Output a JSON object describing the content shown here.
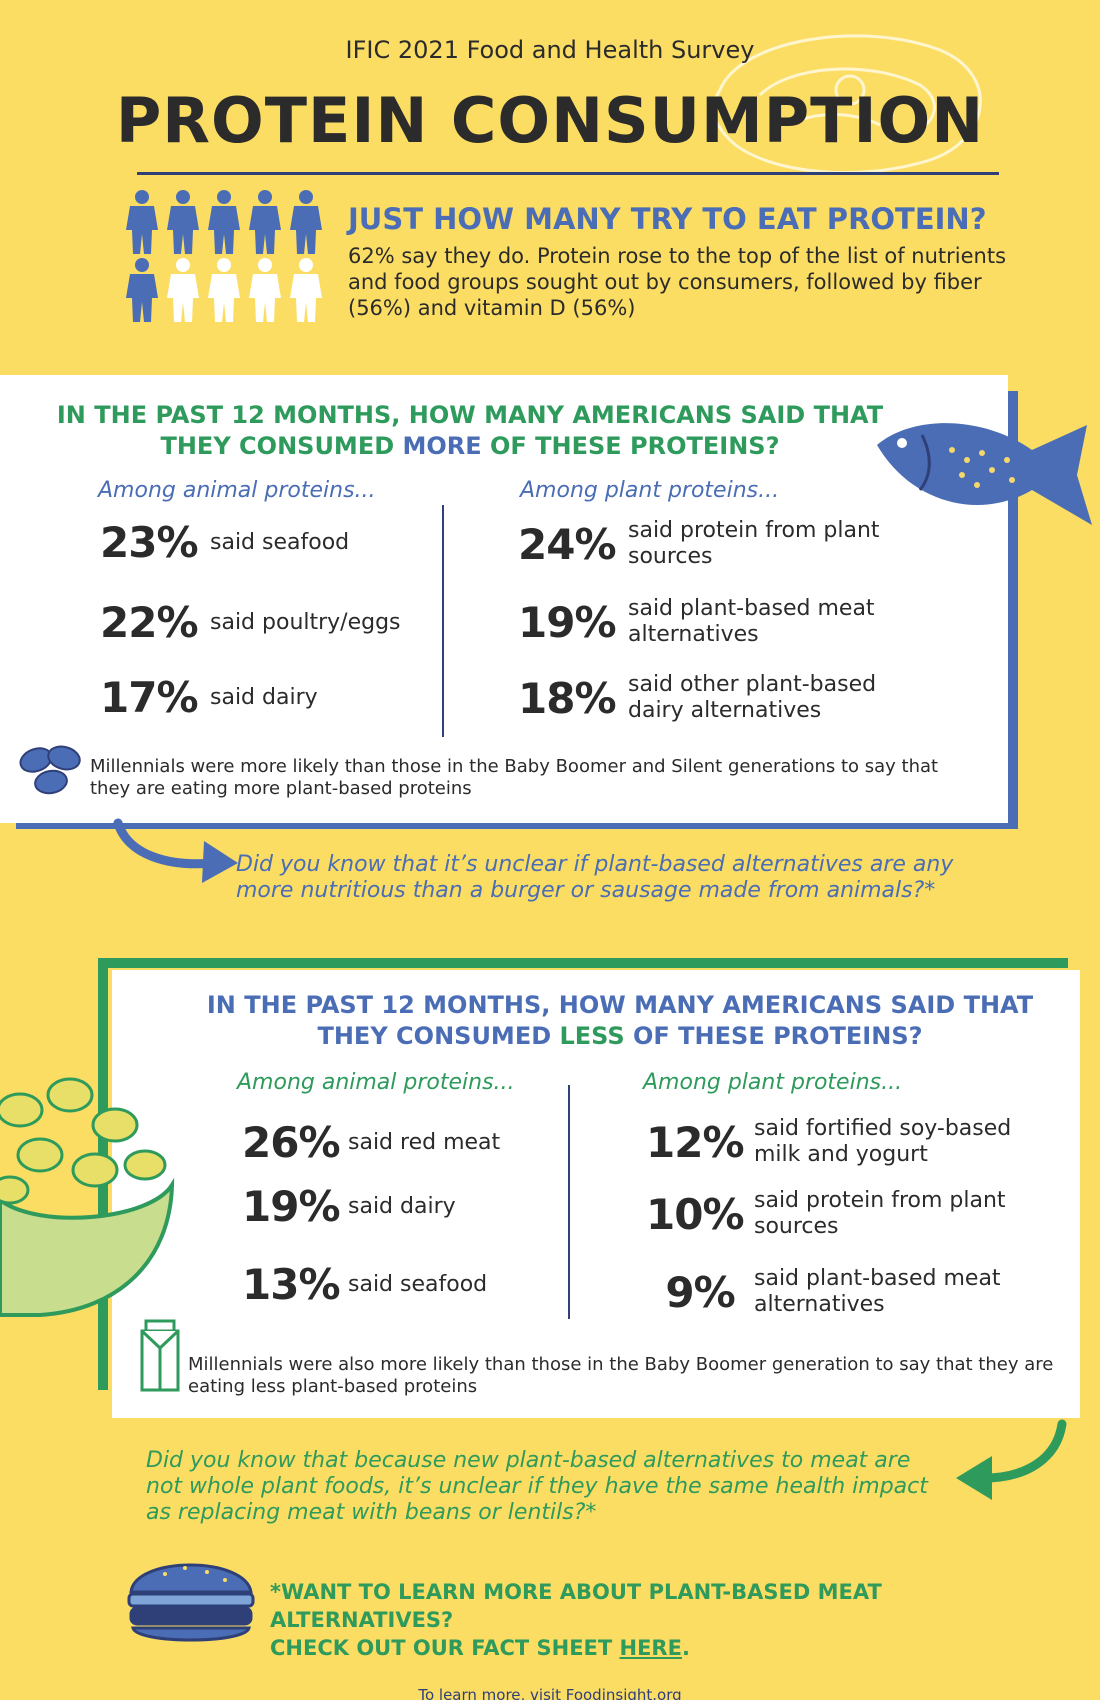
{
  "header": {
    "survey": "IFIC 2021 Food and Health Survey",
    "title": "PROTEIN CONSUMPTION"
  },
  "intro": {
    "question": "JUST HOW MANY TRY TO EAT PROTEIN?",
    "body": "62% say they do. Protein rose to the top of the list of nutrients and food groups sought out by consumers, followed by fiber (56%) and vitamin D (56%)",
    "people_total": 10,
    "people_filled": 6
  },
  "more": {
    "heading_pre": "IN THE PAST 12 MONTHS, HOW MANY AMERICANS SAID THAT THEY CONSUMED ",
    "heading_hi": "MORE",
    "heading_post": " OF THESE PROTEINS?",
    "animal_label": "Among animal proteins...",
    "plant_label": "Among plant proteins...",
    "animal": [
      {
        "pct": "23%",
        "label": "said seafood"
      },
      {
        "pct": "22%",
        "label": "said poultry/eggs"
      },
      {
        "pct": "17%",
        "label": "said dairy"
      }
    ],
    "plant": [
      {
        "pct": "24%",
        "label": "said protein from plant sources"
      },
      {
        "pct": "19%",
        "label": "said plant-based meat alternatives"
      },
      {
        "pct": "18%",
        "label": "said other plant-based dairy alternatives"
      }
    ],
    "note": "Millennials were more likely than those in the Baby Boomer and Silent generations to say that they are eating more plant-based proteins",
    "did_you_know": "Did you know that it’s unclear if plant-based alternatives are any more nutritious than a burger or sausage made from animals?*"
  },
  "less": {
    "heading_pre": "IN THE PAST 12 MONTHS, HOW MANY AMERICANS SAID THAT THEY CONSUMED ",
    "heading_hi": "LESS",
    "heading_post": " OF THESE PROTEINS?",
    "animal_label": "Among animal proteins...",
    "plant_label": "Among plant proteins...",
    "animal": [
      {
        "pct": "26%",
        "label": "said red meat"
      },
      {
        "pct": "19%",
        "label": "said dairy"
      },
      {
        "pct": "13%",
        "label": "said seafood"
      }
    ],
    "plant": [
      {
        "pct": "12%",
        "label": "said fortified soy-based milk and yogurt"
      },
      {
        "pct": "10%",
        "label": "said protein from plant sources"
      },
      {
        "pct": "9%",
        "label": "said plant-based meat alternatives"
      }
    ],
    "note": "Millennials were also more likely than those in the Baby Boomer generation to say that they are eating less plant-based proteins",
    "did_you_know": "Did you know that because new plant-based alternatives to meat are not whole plant foods, it’s unclear if they have the same health impact as replacing meat with beans or lentils?*"
  },
  "cta": {
    "line1": "*WANT TO LEARN MORE ABOUT PLANT-BASED MEAT ALTERNATIVES?",
    "line2_pre": "CHECK OUT OUR FACT SHEET ",
    "link": "HERE",
    "line2_post": "."
  },
  "footer": "To learn more, visit Foodinsight.org",
  "colors": {
    "background": "#fbdd64",
    "blue": "#4a6db5",
    "navy": "#2f3f78",
    "green": "#2e9a5b"
  }
}
